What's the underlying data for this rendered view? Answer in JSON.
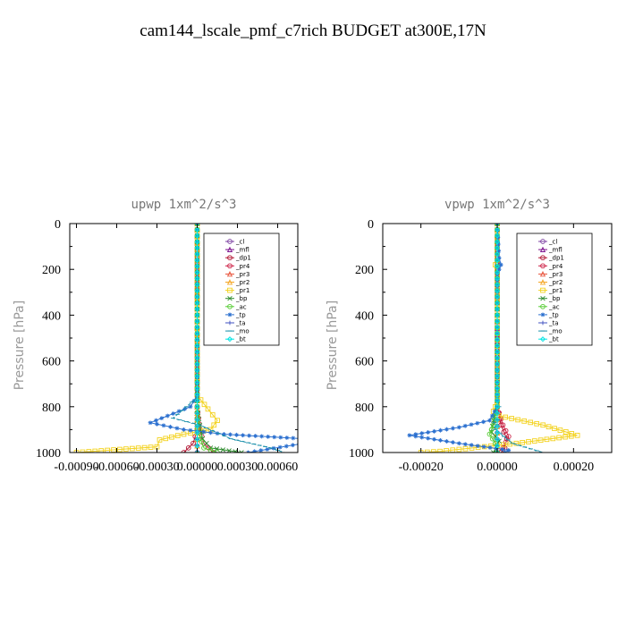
{
  "title": "cam144_lscale_pmf_c7rich  BUDGET at300E,17N",
  "chart_data": [
    {
      "type": "line",
      "title": "upwp   1xm^2/s^3",
      "xlabel": "",
      "ylabel": "Pressure [hPa]",
      "xlim": [
        -0.00095,
        0.00075
      ],
      "ylim": [
        1000,
        0
      ],
      "xticks": [
        -0.0009,
        -0.0006,
        -0.0003,
        0.0,
        0.0003,
        0.0006
      ],
      "xtick_labels": [
        "-0.00090",
        "-0.00060",
        "-0.00030",
        "0.00000",
        "0.00030",
        "0.00060"
      ],
      "yticks": [
        0,
        200,
        400,
        600,
        800,
        1000
      ],
      "ytick_labels": [
        "0",
        "200",
        "400",
        "600",
        "800",
        "1000"
      ],
      "legend_position": "top-right",
      "series": [
        {
          "name": "_cl",
          "color": "#7b3fa0",
          "marker": "circle",
          "points": [
            [
              0,
              0
            ],
            [
              0,
              200
            ],
            [
              0,
              400
            ],
            [
              0,
              600
            ],
            [
              0,
              800
            ],
            [
              0,
              1000
            ]
          ]
        },
        {
          "name": "_mfl",
          "color": "#7a0f8c",
          "marker": "triangle",
          "points": [
            [
              0,
              0
            ],
            [
              0,
              200
            ],
            [
              0,
              400
            ],
            [
              0,
              600
            ],
            [
              0,
              800
            ],
            [
              0,
              1000
            ]
          ]
        },
        {
          "name": "_dp1",
          "color": "#b0102e",
          "marker": "circle",
          "points": [
            [
              0,
              0
            ],
            [
              0,
              200
            ],
            [
              0,
              400
            ],
            [
              0,
              600
            ],
            [
              0,
              800
            ],
            [
              0,
              900
            ],
            [
              -3e-05,
              960
            ],
            [
              -0.0001,
              1000
            ]
          ]
        },
        {
          "name": "_pr4",
          "color": "#cc1f44",
          "marker": "circle",
          "points": [
            [
              0,
              0
            ],
            [
              0,
              400
            ],
            [
              0,
              800
            ],
            [
              2e-05,
              900
            ],
            [
              5e-05,
              960
            ],
            [
              0.00012,
              1000
            ]
          ]
        },
        {
          "name": "_pr3",
          "color": "#e8533a",
          "marker": "triangle",
          "points": [
            [
              0,
              0
            ],
            [
              0,
              400
            ],
            [
              0,
              800
            ],
            [
              0,
              1000
            ]
          ]
        },
        {
          "name": "_pr2",
          "color": "#f5a623",
          "marker": "triangle",
          "points": [
            [
              0,
              0
            ],
            [
              0,
              400
            ],
            [
              0,
              800
            ],
            [
              0,
              1000
            ]
          ]
        },
        {
          "name": "_pr1",
          "color": "#f3d21f",
          "marker": "square",
          "points": [
            [
              0,
              0
            ],
            [
              0,
              200
            ],
            [
              0,
              400
            ],
            [
              0,
              600
            ],
            [
              0,
              750
            ],
            [
              8e-05,
              810
            ],
            [
              0.00015,
              860
            ],
            [
              0.0001,
              900
            ],
            [
              -0.0001,
              920
            ],
            [
              -0.00028,
              945
            ],
            [
              -0.0003,
              975
            ],
            [
              -0.0009,
              1000
            ]
          ]
        },
        {
          "name": "_bp",
          "color": "#2e8b2e",
          "marker": "cross",
          "points": [
            [
              0,
              0
            ],
            [
              0,
              400
            ],
            [
              0,
              800
            ],
            [
              2e-05,
              880
            ],
            [
              4e-05,
              940
            ],
            [
              0.0001,
              980
            ],
            [
              0.00033,
              1000
            ]
          ]
        },
        {
          "name": "_ac",
          "color": "#55cc33",
          "marker": "circle",
          "points": [
            [
              0,
              0
            ],
            [
              0,
              400
            ],
            [
              0,
              800
            ],
            [
              0,
              900
            ],
            [
              5e-05,
              980
            ],
            [
              0.00015,
              1000
            ]
          ]
        },
        {
          "name": "_tp",
          "color": "#2a6fcf",
          "marker": "star",
          "points": [
            [
              0,
              0
            ],
            [
              0,
              400
            ],
            [
              0,
              750
            ],
            [
              -5e-05,
              800
            ],
            [
              -0.00035,
              870
            ],
            [
              -0.0001,
              900
            ],
            [
              0.0002,
              920
            ],
            [
              0.00095,
              945
            ],
            [
              0.00038,
              1000
            ]
          ]
        },
        {
          "name": "_ta",
          "color": "#4050c0",
          "marker": "plus",
          "points": [
            [
              0,
              0
            ],
            [
              0,
              400
            ],
            [
              0,
              800
            ],
            [
              0,
              1000
            ]
          ]
        },
        {
          "name": "_mo",
          "color": "#1a8faa",
          "marker": "dash",
          "points": [
            [
              0,
              0
            ],
            [
              0,
              400
            ],
            [
              0,
              760
            ],
            [
              -8e-05,
              800
            ],
            [
              -0.00018,
              850
            ],
            [
              2e-05,
              880
            ],
            [
              0.00025,
              940
            ],
            [
              0.00055,
              980
            ],
            [
              0.00065,
              1000
            ]
          ]
        },
        {
          "name": "_bt",
          "color": "#00e5e5",
          "marker": "diamond",
          "points": [
            [
              0,
              0
            ],
            [
              0,
              400
            ],
            [
              0,
              800
            ],
            [
              0,
              1000
            ]
          ]
        }
      ]
    },
    {
      "type": "line",
      "title": "vpwp   1xm^2/s^3",
      "xlabel": "",
      "ylabel": "Pressure [hPa]",
      "xlim": [
        -0.0003,
        0.0003
      ],
      "ylim": [
        1000,
        0
      ],
      "xticks": [
        -0.0002,
        0.0,
        0.0002
      ],
      "xtick_labels": [
        "-0.00020",
        "0.00000",
        "0.00020"
      ],
      "yticks": [
        0,
        200,
        400,
        600,
        800,
        1000
      ],
      "ytick_labels": [
        "0",
        "200",
        "400",
        "600",
        "800",
        "1000"
      ],
      "legend_position": "top-right",
      "series": [
        {
          "name": "_cl",
          "color": "#7b3fa0",
          "marker": "circle",
          "points": [
            [
              0,
              0
            ],
            [
              0,
              200
            ],
            [
              0,
              400
            ],
            [
              0,
              600
            ],
            [
              0,
              800
            ],
            [
              0,
              1000
            ]
          ]
        },
        {
          "name": "_mfl",
          "color": "#7a0f8c",
          "marker": "triangle",
          "points": [
            [
              0,
              0
            ],
            [
              0,
              200
            ],
            [
              0,
              400
            ],
            [
              0,
              600
            ],
            [
              0,
              800
            ],
            [
              0,
              1000
            ]
          ]
        },
        {
          "name": "_dp1",
          "color": "#b0102e",
          "marker": "circle",
          "points": [
            [
              0,
              0
            ],
            [
              0,
              400
            ],
            [
              0,
              800
            ],
            [
              1e-05,
              880
            ],
            [
              2.5e-05,
              940
            ],
            [
              2e-05,
              980
            ],
            [
              1e-05,
              1000
            ]
          ]
        },
        {
          "name": "_pr4",
          "color": "#cc1f44",
          "marker": "circle",
          "points": [
            [
              0,
              0
            ],
            [
              0,
              400
            ],
            [
              0,
              800
            ],
            [
              1.5e-05,
              880
            ],
            [
              3e-05,
              930
            ],
            [
              1.5e-05,
              980
            ],
            [
              0,
              1000
            ]
          ]
        },
        {
          "name": "_pr3",
          "color": "#e8533a",
          "marker": "triangle",
          "points": [
            [
              0,
              0
            ],
            [
              0,
              400
            ],
            [
              0,
              800
            ],
            [
              0,
              1000
            ]
          ]
        },
        {
          "name": "_pr2",
          "color": "#f5a623",
          "marker": "triangle",
          "points": [
            [
              0,
              0
            ],
            [
              0,
              400
            ],
            [
              0,
              800
            ],
            [
              0,
              1000
            ]
          ]
        },
        {
          "name": "_pr1",
          "color": "#f3d21f",
          "marker": "square",
          "points": [
            [
              0,
              0
            ],
            [
              0,
              150
            ],
            [
              -5e-06,
              180
            ],
            [
              0,
              200
            ],
            [
              0,
              400
            ],
            [
              0,
              780
            ],
            [
              -1e-05,
              820
            ],
            [
              5e-06,
              840
            ],
            [
              0.00012,
              880
            ],
            [
              0.00021,
              925
            ],
            [
              5e-05,
              960
            ],
            [
              -0.00015,
              995
            ],
            [
              -0.0002,
              1000
            ]
          ]
        },
        {
          "name": "_bp",
          "color": "#2e8b2e",
          "marker": "cross",
          "points": [
            [
              0,
              0
            ],
            [
              0,
              400
            ],
            [
              0,
              800
            ],
            [
              -1e-05,
              860
            ],
            [
              -1.5e-05,
              910
            ],
            [
              5e-06,
              950
            ],
            [
              -1e-05,
              1000
            ]
          ]
        },
        {
          "name": "_ac",
          "color": "#55cc33",
          "marker": "circle",
          "points": [
            [
              0,
              0
            ],
            [
              0,
              400
            ],
            [
              0,
              800
            ],
            [
              -1e-05,
              880
            ],
            [
              -2e-05,
              920
            ],
            [
              -5e-06,
              960
            ],
            [
              0,
              1000
            ]
          ]
        },
        {
          "name": "_tp",
          "color": "#2a6fcf",
          "marker": "star",
          "points": [
            [
              0,
              0
            ],
            [
              5e-06,
              150
            ],
            [
              1e-05,
              180
            ],
            [
              0,
              220
            ],
            [
              0,
              400
            ],
            [
              0,
              800
            ],
            [
              -2e-05,
              860
            ],
            [
              -0.0001,
              890
            ],
            [
              -0.00023,
              925
            ],
            [
              -0.0001,
              960
            ],
            [
              3e-05,
              990
            ],
            [
              2e-05,
              1000
            ]
          ]
        },
        {
          "name": "_ta",
          "color": "#4050c0",
          "marker": "plus",
          "points": [
            [
              0,
              0
            ],
            [
              0,
              400
            ],
            [
              0,
              800
            ],
            [
              0,
              1000
            ]
          ]
        },
        {
          "name": "_mo",
          "color": "#1a8faa",
          "marker": "dash",
          "points": [
            [
              0,
              0
            ],
            [
              0,
              400
            ],
            [
              0,
              760
            ],
            [
              5e-06,
              800
            ],
            [
              -1e-05,
              840
            ],
            [
              -5e-06,
              900
            ],
            [
              4e-05,
              960
            ],
            [
              0.00012,
              1000
            ]
          ]
        },
        {
          "name": "_bt",
          "color": "#00e5e5",
          "marker": "diamond",
          "points": [
            [
              0,
              0
            ],
            [
              0,
              400
            ],
            [
              0,
              800
            ],
            [
              0,
              1000
            ]
          ]
        }
      ]
    }
  ]
}
